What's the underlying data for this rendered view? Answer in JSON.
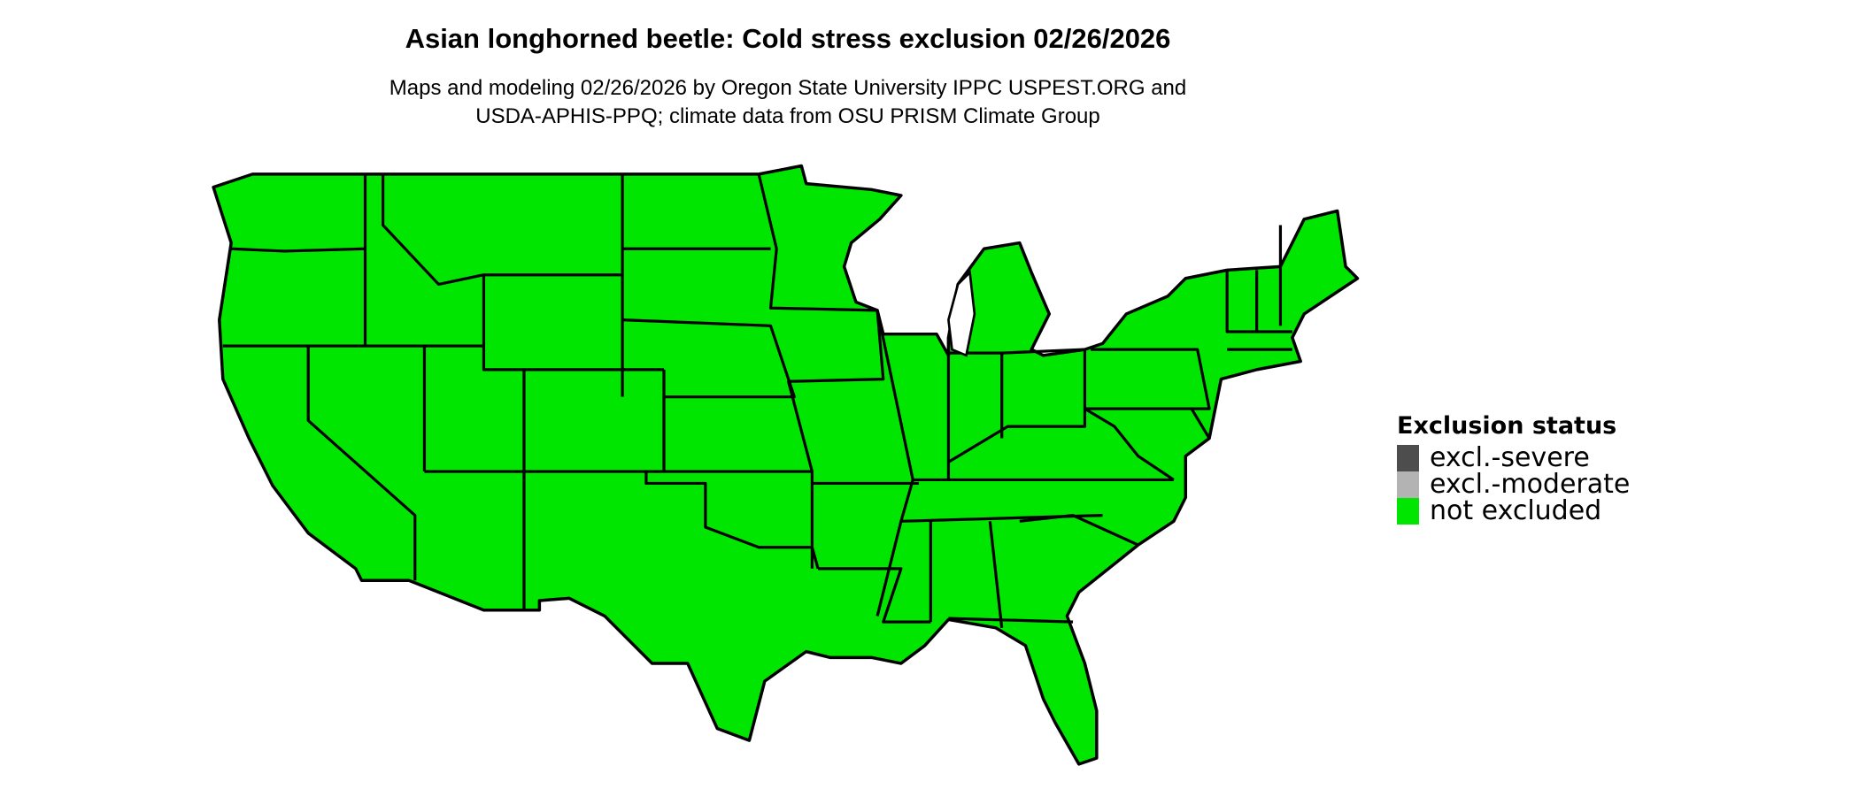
{
  "title": "Asian longhorned beetle: Cold stress exclusion 02/26/2026",
  "subtitle_line1": "Maps and modeling 02/26/2026 by Oregon State University IPPC USPEST.ORG and",
  "subtitle_line2": "USDA-APHIS-PPQ; climate data from OSU PRISM Climate Group",
  "legend": {
    "title": "Exclusion status",
    "items": [
      {
        "label": "excl.-severe",
        "color": "#4d4d4d"
      },
      {
        "label": "excl.-moderate",
        "color": "#b3b3b3"
      },
      {
        "label": "not excluded",
        "color": "#00e600"
      }
    ]
  },
  "map": {
    "region": "contiguous United States",
    "fill_status": "not excluded",
    "fill_color": "#00e600",
    "border_color": "#000000"
  }
}
